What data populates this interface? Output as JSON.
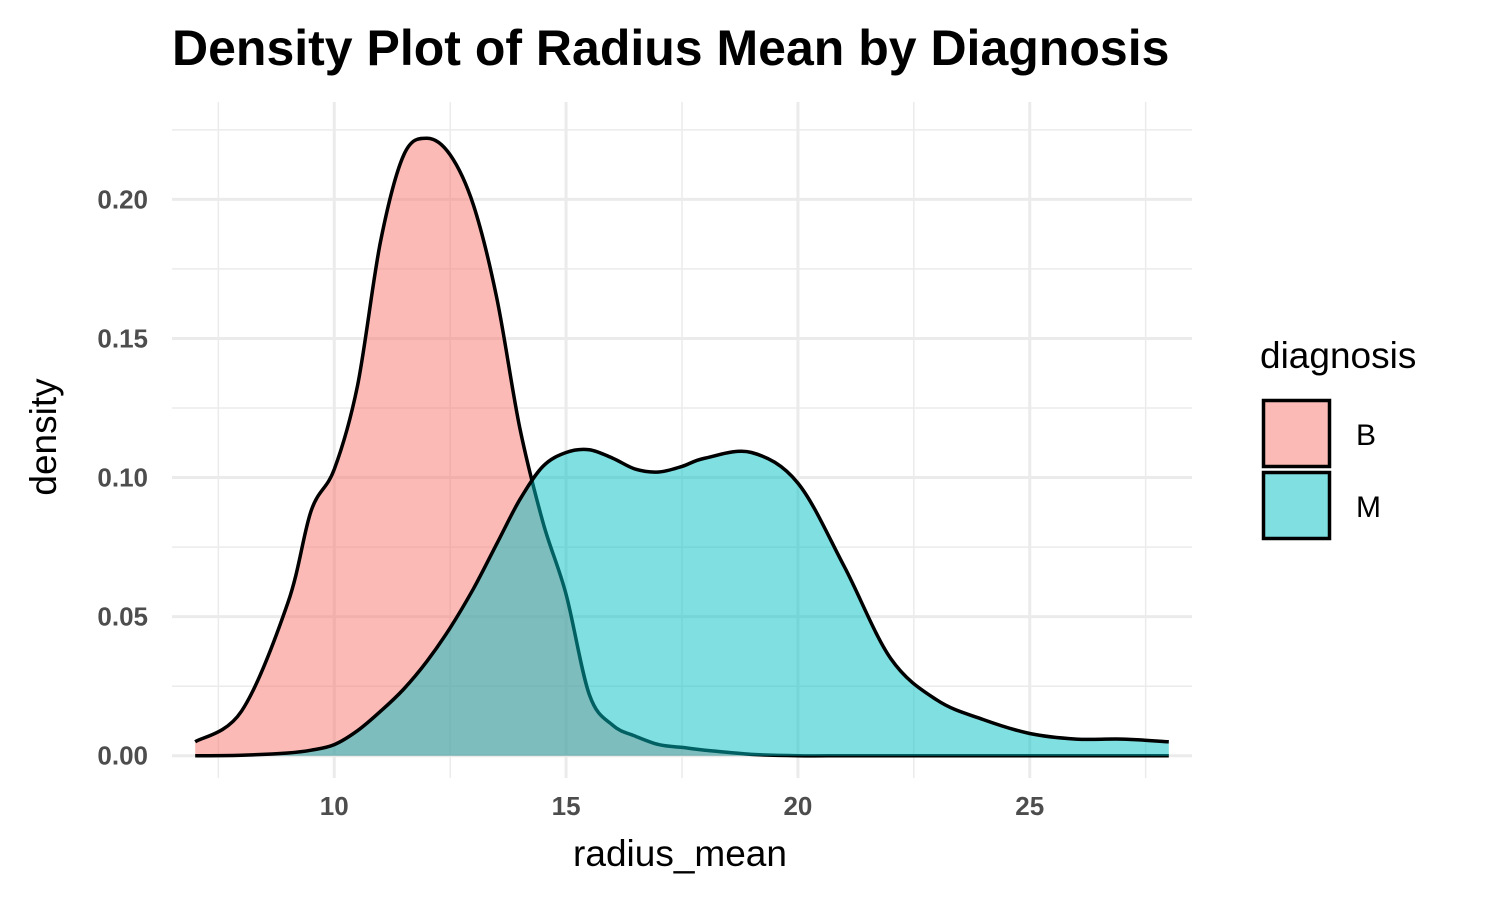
{
  "chart_data": {
    "type": "area",
    "title": "Density Plot of Radius Mean by Diagnosis",
    "xlabel": "radius_mean",
    "ylabel": "density",
    "xlim": [
      6.5,
      28.5
    ],
    "ylim": [
      -0.008,
      0.235
    ],
    "x_ticks": [
      10,
      15,
      20,
      25
    ],
    "x_tick_labels": [
      "10",
      "15",
      "20",
      "25"
    ],
    "y_ticks": [
      0.0,
      0.05,
      0.1,
      0.15,
      0.2
    ],
    "y_tick_labels": [
      "0.00",
      "0.05",
      "0.10",
      "0.15",
      "0.20"
    ],
    "grid": true,
    "legend": {
      "title": "diagnosis",
      "placement": "right"
    },
    "series": [
      {
        "name": "B",
        "color": "#F8766D",
        "x": [
          7.0,
          8.0,
          9.0,
          9.5,
          10.0,
          10.5,
          11.0,
          11.5,
          12.0,
          12.5,
          13.0,
          13.5,
          14.0,
          14.5,
          15.0,
          15.5,
          16.0,
          16.5,
          17.0,
          17.5,
          18.0,
          19.0,
          20.0,
          21.0,
          22.0,
          23.0,
          24.0,
          25.0,
          26.0,
          27.0,
          28.0
        ],
        "values": [
          0.005,
          0.016,
          0.055,
          0.088,
          0.103,
          0.133,
          0.185,
          0.216,
          0.222,
          0.216,
          0.198,
          0.165,
          0.118,
          0.084,
          0.058,
          0.022,
          0.011,
          0.007,
          0.004,
          0.003,
          0.002,
          0.0005,
          0.0,
          0.0,
          0.0,
          0.0,
          0.0,
          0.0,
          0.0,
          0.0,
          0.0
        ]
      },
      {
        "name": "M",
        "color": "#00BFC4",
        "x": [
          7.0,
          8.0,
          9.0,
          9.5,
          10.0,
          10.5,
          11.0,
          11.5,
          12.0,
          12.5,
          13.0,
          13.5,
          14.0,
          14.5,
          15.0,
          15.5,
          16.0,
          16.5,
          17.0,
          17.5,
          18.0,
          19.0,
          20.0,
          21.0,
          22.0,
          23.0,
          24.0,
          25.0,
          26.0,
          27.0,
          28.0
        ],
        "values": [
          0.0,
          0.0002,
          0.001,
          0.002,
          0.004,
          0.009,
          0.016,
          0.024,
          0.034,
          0.046,
          0.06,
          0.076,
          0.092,
          0.104,
          0.109,
          0.11,
          0.107,
          0.103,
          0.102,
          0.104,
          0.107,
          0.109,
          0.098,
          0.068,
          0.035,
          0.02,
          0.013,
          0.008,
          0.006,
          0.006,
          0.005
        ]
      }
    ]
  }
}
